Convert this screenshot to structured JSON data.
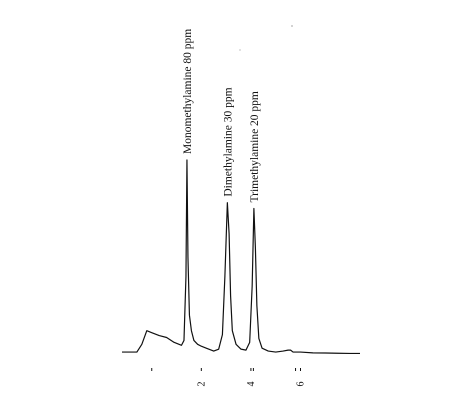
{
  "chart_data": {
    "type": "line",
    "title": "",
    "xlabel": "",
    "ylabel": "",
    "xlim": [
      -1.2,
      8.4
    ],
    "ylim": [
      0,
      100
    ],
    "grid": false,
    "legend": "none",
    "x_ticks": [
      {
        "value": 2,
        "label": "2"
      },
      {
        "value": 4,
        "label": "4"
      },
      {
        "value": 6,
        "label": "6"
      }
    ],
    "minor_ticks": [
      0,
      4.1,
      5.8
    ],
    "series": [
      {
        "x": [
          -1.2,
          -0.6,
          -0.4,
          -0.2,
          0.0,
          0.3,
          0.6,
          0.9,
          1.2,
          1.3,
          1.38,
          1.42,
          1.46,
          1.52,
          1.6,
          1.7,
          1.85,
          2.0,
          2.2,
          2.5,
          2.7,
          2.85,
          2.95,
          3.05,
          3.12,
          3.18,
          3.25,
          3.4,
          3.6,
          3.8,
          3.95,
          4.05,
          4.12,
          4.18,
          4.24,
          4.32,
          4.45,
          4.7,
          5.0,
          5.3,
          5.5,
          5.6,
          5.7,
          6.0,
          6.5,
          7.0,
          7.5,
          8.0,
          8.4
        ],
        "y": [
          1.0,
          1.0,
          5.0,
          12.0,
          11.0,
          9.5,
          8.5,
          6.0,
          4.5,
          7.0,
          40.0,
          100.0,
          50.0,
          20.0,
          12.0,
          7.0,
          5.0,
          4.0,
          3.0,
          1.5,
          2.5,
          10.0,
          40.0,
          78.0,
          62.0,
          30.0,
          12.0,
          5.0,
          2.5,
          2.0,
          6.0,
          35.0,
          75.0,
          55.0,
          25.0,
          8.0,
          3.0,
          1.5,
          1.0,
          1.5,
          2.0,
          2.0,
          1.0,
          1.0,
          0.6,
          0.5,
          0.4,
          0.3,
          0.3
        ]
      }
    ],
    "annotations": [
      {
        "text": "Monomethylamine  80 ppm",
        "x": 1.42
      },
      {
        "text": "Dimethylamine  30 ppm",
        "x": 3.05
      },
      {
        "text": "Trimethylamine  20 ppm",
        "x": 4.12
      }
    ],
    "stroke_color": "#111111"
  }
}
